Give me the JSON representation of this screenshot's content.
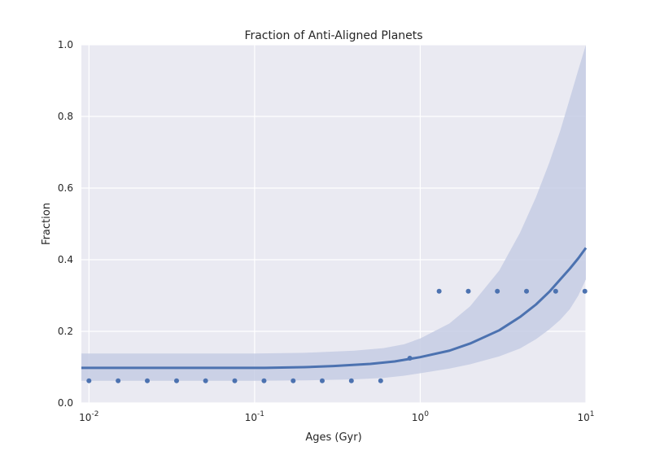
{
  "chart_data": {
    "type": "scatter",
    "title": "Fraction of Anti-Aligned Planets",
    "xlabel": "Ages (Gyr)",
    "ylabel": "Fraction",
    "x_scale": "log",
    "xlim": [
      0.009,
      10
    ],
    "ylim": [
      0.0,
      1.0
    ],
    "grid": true,
    "x_ticks": [
      {
        "value": 0.01,
        "base": "10",
        "exp": "-2"
      },
      {
        "value": 0.1,
        "base": "10",
        "exp": "-1"
      },
      {
        "value": 1,
        "base": "10",
        "exp": "0"
      },
      {
        "value": 10,
        "base": "10",
        "exp": "1"
      }
    ],
    "y_ticks": [
      {
        "value": 0.0,
        "label": "0.0"
      },
      {
        "value": 0.2,
        "label": "0.2"
      },
      {
        "value": 0.4,
        "label": "0.4"
      },
      {
        "value": 0.6,
        "label": "0.6"
      },
      {
        "value": 0.8,
        "label": "0.8"
      },
      {
        "value": 1.0,
        "label": "1.0"
      }
    ],
    "points": {
      "x": [
        0.01,
        0.015,
        0.0225,
        0.0338,
        0.0506,
        0.0759,
        0.114,
        0.171,
        0.256,
        0.384,
        0.577,
        0.865,
        1.3,
        1.95,
        2.92,
        4.38,
        6.57,
        9.86
      ],
      "y": [
        0.062,
        0.062,
        0.062,
        0.062,
        0.062,
        0.062,
        0.062,
        0.062,
        0.062,
        0.062,
        0.062,
        0.125,
        0.312,
        0.312,
        0.312,
        0.312,
        0.312,
        0.312
      ]
    },
    "fit": {
      "x": [
        0.009,
        0.05,
        0.1,
        0.115,
        0.2,
        0.3,
        0.5,
        0.7,
        1.0,
        1.5,
        2.0,
        3.0,
        4.0,
        5.0,
        6.0,
        7.0,
        8.0,
        9.0,
        10.0
      ],
      "y": [
        0.098,
        0.098,
        0.098,
        0.098,
        0.1,
        0.103,
        0.109,
        0.116,
        0.128,
        0.146,
        0.166,
        0.203,
        0.24,
        0.275,
        0.31,
        0.345,
        0.375,
        0.404,
        0.433
      ]
    },
    "band": {
      "x": [
        0.009,
        0.1,
        0.2,
        0.4,
        0.6,
        0.8,
        1.0,
        1.5,
        2.0,
        3.0,
        4.0,
        5.0,
        6.0,
        7.0,
        8.0,
        9.0,
        10.0
      ],
      "lower": [
        0.062,
        0.062,
        0.063,
        0.066,
        0.07,
        0.076,
        0.083,
        0.096,
        0.108,
        0.13,
        0.152,
        0.178,
        0.205,
        0.232,
        0.262,
        0.3,
        0.345
      ],
      "upper": [
        0.138,
        0.138,
        0.14,
        0.146,
        0.153,
        0.164,
        0.18,
        0.222,
        0.27,
        0.37,
        0.475,
        0.575,
        0.67,
        0.76,
        0.85,
        0.93,
        1.0
      ]
    },
    "colors": {
      "plot_bg": "#eaeaf2",
      "grid": "#ffffff",
      "line": "#4c72b0",
      "points": "#4c72b0",
      "band": "#c5cde4"
    }
  }
}
